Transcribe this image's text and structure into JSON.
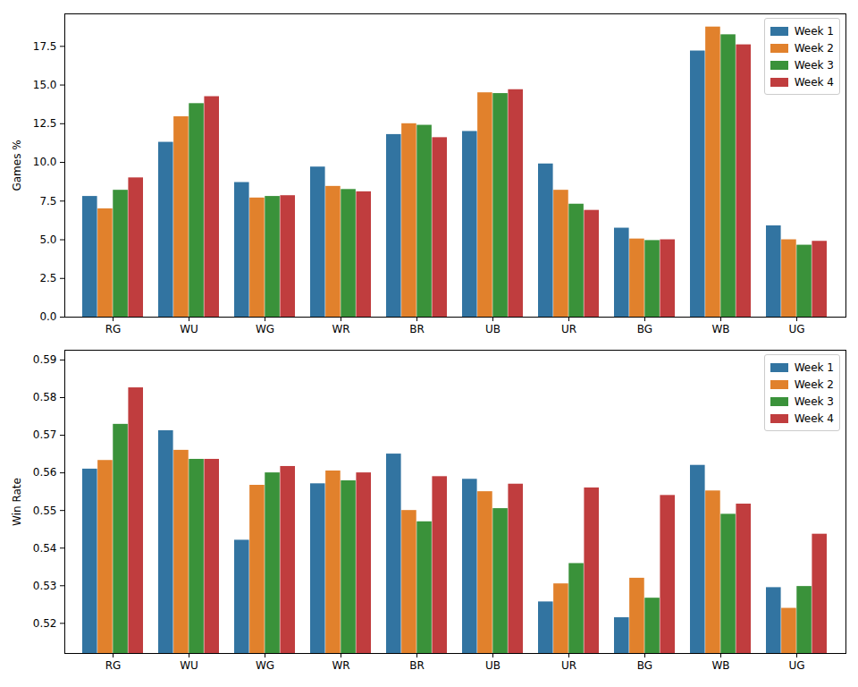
{
  "chart_data": [
    {
      "type": "bar",
      "ylabel": "Games %",
      "categories": [
        "RG",
        "WU",
        "WG",
        "WR",
        "BR",
        "UB",
        "UR",
        "BG",
        "WB",
        "UG"
      ],
      "series": [
        {
          "name": "Week 1",
          "color": "#3274a1",
          "values": [
            7.8,
            11.3,
            8.7,
            9.7,
            11.8,
            12.0,
            9.9,
            5.75,
            17.2,
            5.9
          ]
        },
        {
          "name": "Week 2",
          "color": "#e1812c",
          "values": [
            7.0,
            12.95,
            7.7,
            8.45,
            12.5,
            14.5,
            8.2,
            5.05,
            18.75,
            5.0
          ]
        },
        {
          "name": "Week 3",
          "color": "#3a923a",
          "values": [
            8.2,
            13.8,
            7.8,
            8.25,
            12.4,
            14.45,
            7.3,
            4.95,
            18.25,
            4.65
          ]
        },
        {
          "name": "Week 4",
          "color": "#c03d3e",
          "values": [
            9.0,
            14.25,
            7.85,
            8.1,
            11.6,
            14.7,
            6.9,
            5.0,
            17.6,
            4.9
          ]
        }
      ],
      "ylim": [
        0,
        19.6
      ],
      "yticks": [
        {
          "value": 0,
          "label": "0.0"
        },
        2.5,
        {
          "value": 5,
          "label": "5.0"
        },
        7.5,
        {
          "value": 10,
          "label": "10.0"
        },
        12.5,
        {
          "value": 15,
          "label": "15.0"
        },
        17.5
      ],
      "grid": false,
      "legend": "upper right"
    },
    {
      "type": "bar",
      "ylabel": "Win Rate",
      "categories": [
        "RG",
        "WU",
        "WG",
        "WR",
        "BR",
        "UB",
        "UR",
        "BG",
        "WB",
        "UG"
      ],
      "series": [
        {
          "name": "Week 1",
          "color": "#3274a1",
          "values": [
            0.561,
            0.5712,
            0.5421,
            0.5571,
            0.565,
            0.5583,
            0.5257,
            0.5215,
            0.562,
            0.5295
          ]
        },
        {
          "name": "Week 2",
          "color": "#e1812c",
          "values": [
            0.5633,
            0.566,
            0.5567,
            0.5605,
            0.55,
            0.555,
            0.5305,
            0.532,
            0.5552,
            0.524
          ]
        },
        {
          "name": "Week 3",
          "color": "#3a923a",
          "values": [
            0.5729,
            0.5636,
            0.56,
            0.5579,
            0.547,
            0.5505,
            0.5359,
            0.5267,
            0.549,
            0.5298
          ]
        },
        {
          "name": "Week 4",
          "color": "#c03d3e",
          "values": [
            0.5826,
            0.5636,
            0.5617,
            0.56,
            0.559,
            0.557,
            0.556,
            0.554,
            0.5517,
            0.5437
          ]
        }
      ],
      "ylim": [
        0.512,
        0.5926
      ],
      "yticks": [
        0.52,
        0.53,
        0.54,
        0.55,
        0.56,
        0.57,
        0.58,
        0.59
      ],
      "grid": false,
      "legend": "upper right"
    }
  ]
}
